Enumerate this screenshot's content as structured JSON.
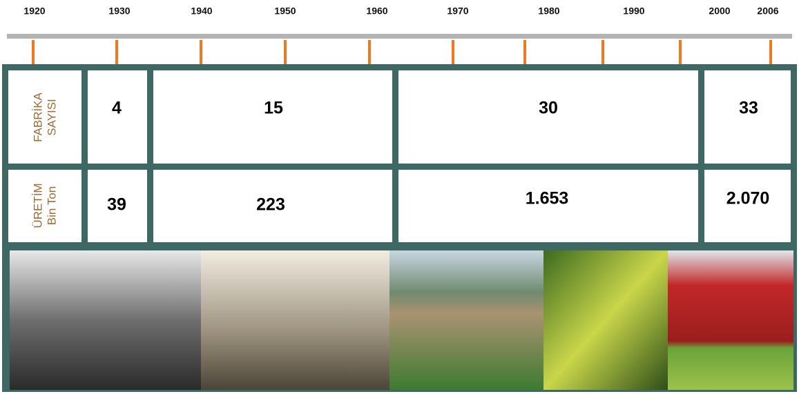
{
  "timeline": {
    "years": [
      "1920",
      "1930",
      "1940",
      "1950",
      "1960",
      "1970",
      "1980",
      "1990",
      "2000",
      "2006"
    ]
  },
  "table": {
    "rows": [
      {
        "header": [
          "FABRİKA",
          "SAYISI"
        ],
        "cells": [
          "4",
          "15",
          "30",
          "33"
        ]
      },
      {
        "header": [
          "ÜRETİM",
          "Bin Ton"
        ],
        "cells": [
          "39",
          "223",
          "1.653",
          "2.070"
        ]
      }
    ]
  }
}
